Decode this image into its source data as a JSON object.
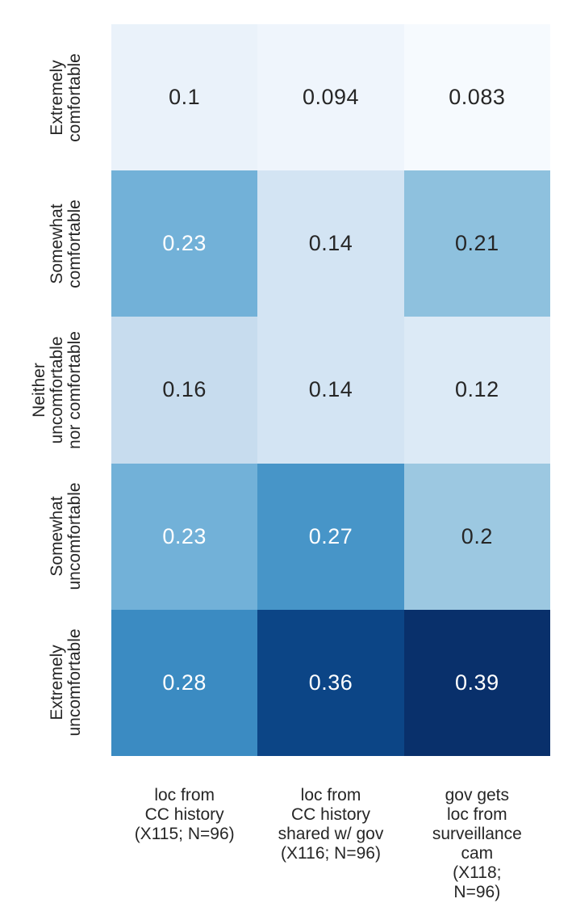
{
  "figure": {
    "background": "#ffffff",
    "text_color": "#262626"
  },
  "chart_data": {
    "type": "heatmap",
    "title": "",
    "xlabel": "",
    "ylabel": "",
    "colormap": "Blues",
    "value_min": 0.083,
    "value_max": 0.39,
    "legend": "none",
    "grid": false,
    "x_tick_labels": [
      "loc from\nCC history\n(X115; N=96)",
      "loc from\nCC history\nshared w/ gov\n(X116; N=96)",
      "gov gets\nloc from\nsurveillance\ncam\n(X118; N=96)"
    ],
    "y_tick_labels": [
      "Extremely\ncomfortable",
      "Somewhat\ncomfortable",
      "Neither\nuncomfortable\nnor comfortable",
      "Somewhat\nuncomfortable",
      "Extremely\nuncomfortable"
    ],
    "values": [
      [
        0.1,
        0.094,
        0.083
      ],
      [
        0.23,
        0.14,
        0.21
      ],
      [
        0.16,
        0.14,
        0.12
      ],
      [
        0.23,
        0.27,
        0.2
      ],
      [
        0.28,
        0.36,
        0.39
      ]
    ],
    "cell_colors": [
      [
        "#eaf2fa",
        "#eff5fc",
        "#f6fafe"
      ],
      [
        "#72b1d8",
        "#d3e4f3",
        "#8ec1de"
      ],
      [
        "#c7dcee",
        "#d3e4f3",
        "#dceaf6"
      ],
      [
        "#72b1d8",
        "#4795c8",
        "#9cc8e1"
      ],
      [
        "#3b8bc2",
        "#0c4586",
        "#09306b"
      ]
    ],
    "annot_colors": [
      [
        "#262626",
        "#262626",
        "#262626"
      ],
      [
        "#ffffff",
        "#262626",
        "#262626"
      ],
      [
        "#262626",
        "#262626",
        "#262626"
      ],
      [
        "#ffffff",
        "#ffffff",
        "#262626"
      ],
      [
        "#ffffff",
        "#ffffff",
        "#ffffff"
      ]
    ]
  }
}
